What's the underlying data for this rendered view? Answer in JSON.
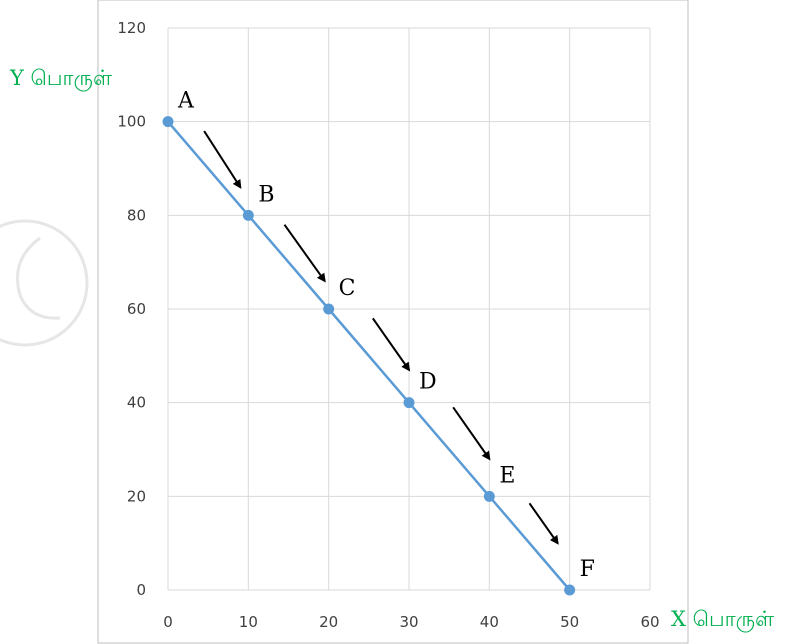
{
  "colors": {
    "line": "#5b9bd5",
    "point": "#5b9bd5",
    "grid": "#d9d9d9",
    "axis_label": "#00b050",
    "arrow": "#000000",
    "frame": "#bfbfbf",
    "watermark": "#e6e6e6"
  },
  "chart_data": {
    "type": "line",
    "x_ticks": [
      0,
      10,
      20,
      30,
      40,
      50,
      60
    ],
    "y_ticks": [
      0,
      20,
      40,
      60,
      80,
      100,
      120
    ],
    "xlim": [
      0,
      60
    ],
    "ylim": [
      0,
      120
    ],
    "grid": true,
    "xlabel": "X  பொருள்",
    "ylabel": "Y  பொருள்",
    "series": [
      {
        "points": [
          {
            "label": "A",
            "x": 0,
            "y": 100
          },
          {
            "label": "B",
            "x": 10,
            "y": 80
          },
          {
            "label": "C",
            "x": 20,
            "y": 60
          },
          {
            "label": "D",
            "x": 30,
            "y": 40
          },
          {
            "label": "E",
            "x": 40,
            "y": 20
          },
          {
            "label": "F",
            "x": 50,
            "y": 0
          }
        ]
      }
    ],
    "annotations": [
      {
        "type": "arrow",
        "from": [
          4.5,
          98
        ],
        "to": [
          9,
          86
        ]
      },
      {
        "type": "arrow",
        "from": [
          14.5,
          78
        ],
        "to": [
          19.5,
          66
        ]
      },
      {
        "type": "arrow",
        "from": [
          25.5,
          58
        ],
        "to": [
          30,
          47
        ]
      },
      {
        "type": "arrow",
        "from": [
          35.5,
          39
        ],
        "to": [
          40,
          28
        ]
      },
      {
        "type": "arrow",
        "from": [
          45,
          18.5
        ],
        "to": [
          48.5,
          10
        ]
      }
    ]
  }
}
